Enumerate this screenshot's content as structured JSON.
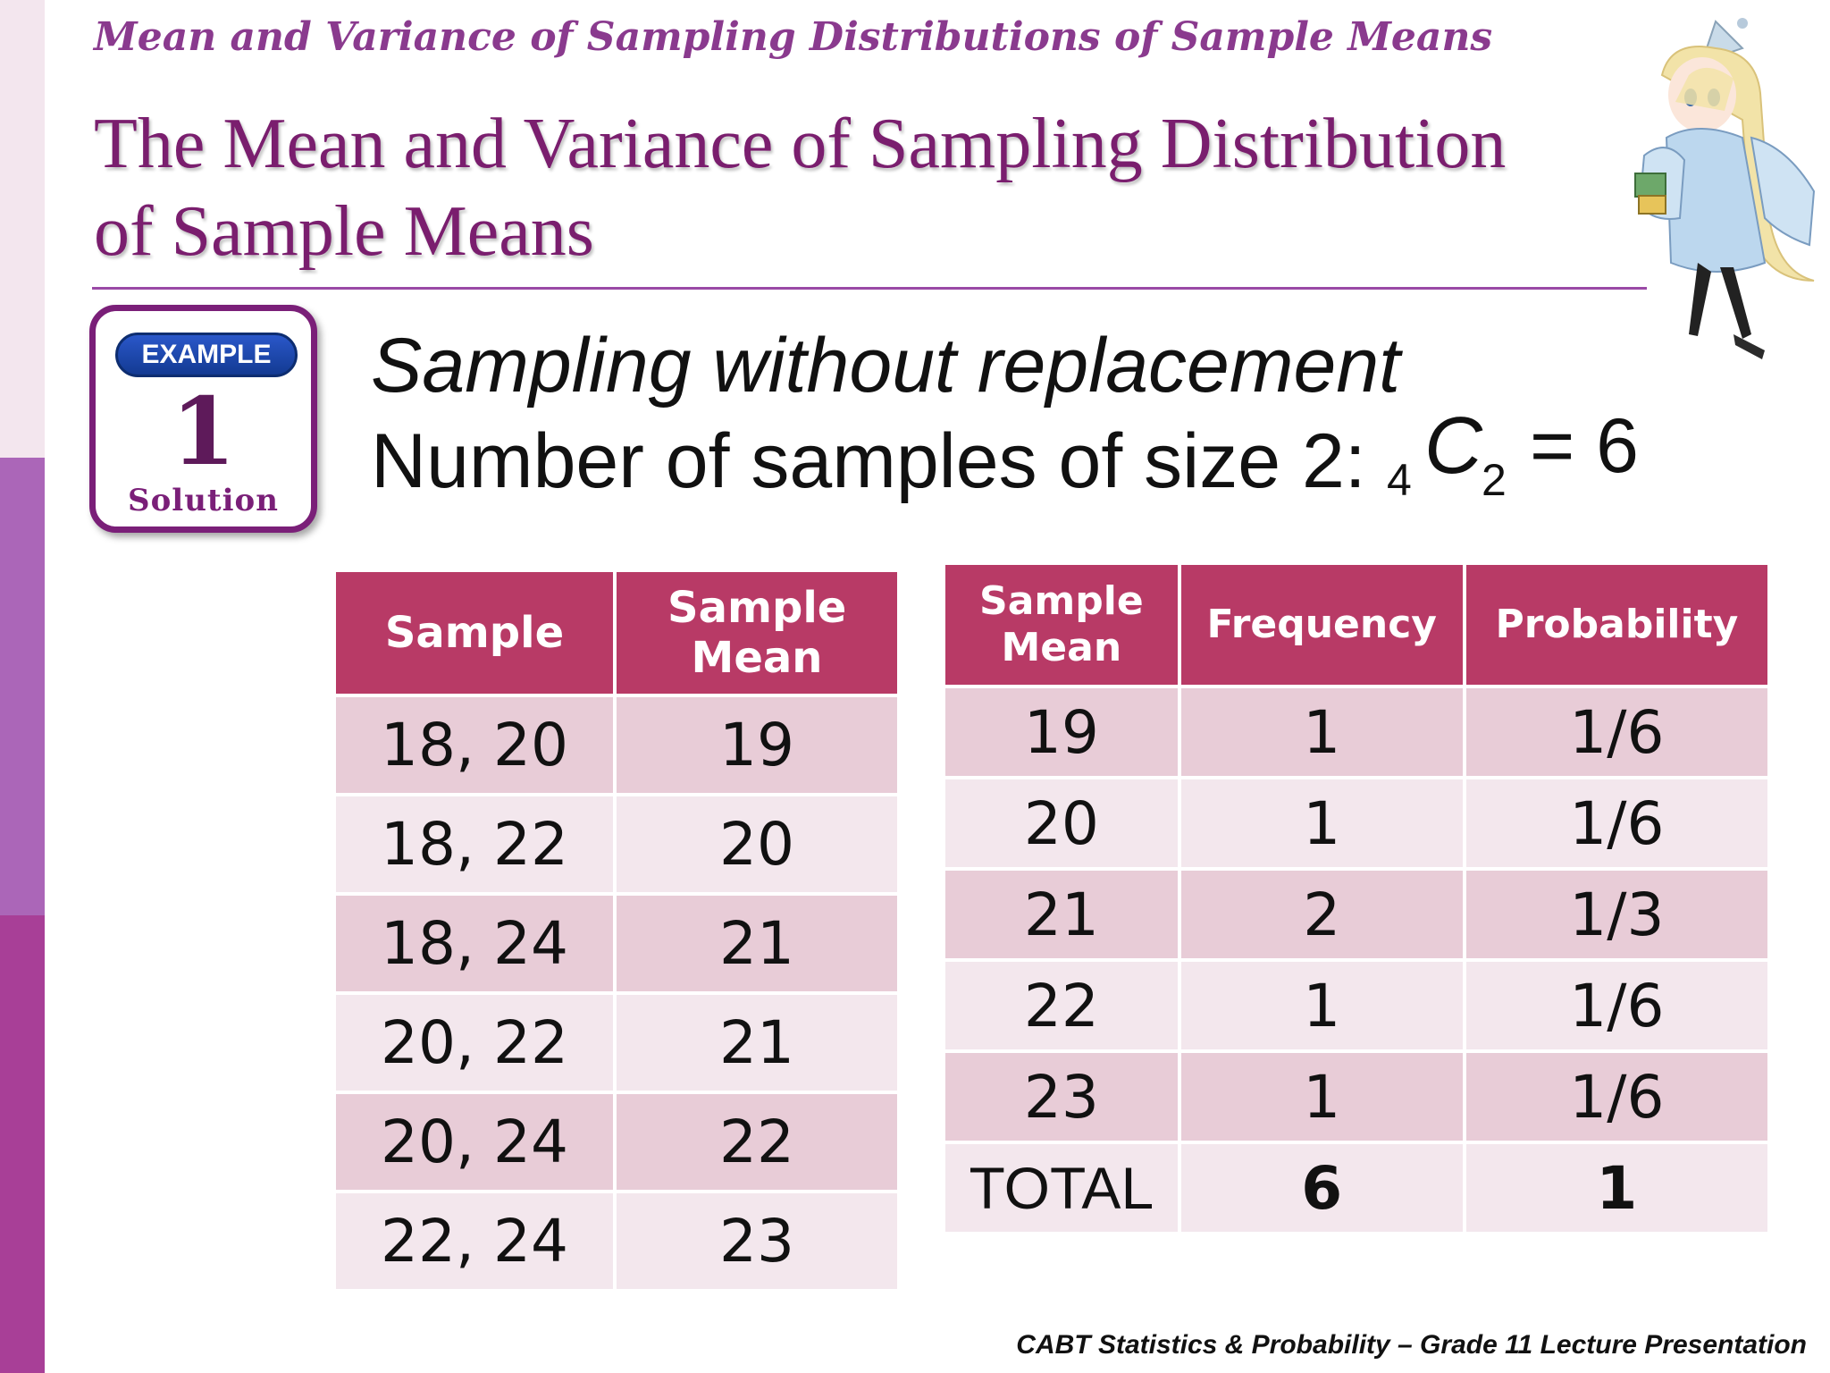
{
  "header": {
    "subtitle": "Mean and Variance of Sampling Distributions of Sample Means",
    "title_line1": "The Mean and Variance of Sampling Distribution",
    "title_line2": "of Sample Means"
  },
  "badge": {
    "label": "EXAMPLE",
    "number": "1",
    "caption": "Solution"
  },
  "intro": {
    "line1": "Sampling without replacement",
    "line2": "Number of samples of size 2:",
    "formula": {
      "pre_subscript": "4",
      "symbol": "C",
      "post_subscript": "2",
      "result": "= 6"
    }
  },
  "samples_table": {
    "headers": [
      "Sample",
      "Sample Mean"
    ],
    "rows": [
      {
        "sample": "18, 20",
        "mean": "19"
      },
      {
        "sample": "18, 22",
        "mean": "20"
      },
      {
        "sample": "18, 24",
        "mean": "21"
      },
      {
        "sample": "20, 22",
        "mean": "21"
      },
      {
        "sample": "20, 24",
        "mean": "22"
      },
      {
        "sample": "22, 24",
        "mean": "23"
      }
    ]
  },
  "distribution_table": {
    "headers": [
      "Sample Mean",
      "Frequency",
      "Probability"
    ],
    "rows": [
      {
        "mean": "19",
        "frequency": "1",
        "probability": "1/6"
      },
      {
        "mean": "20",
        "frequency": "1",
        "probability": "1/6"
      },
      {
        "mean": "21",
        "frequency": "2",
        "probability": "1/3"
      },
      {
        "mean": "22",
        "frequency": "1",
        "probability": "1/6"
      },
      {
        "mean": "23",
        "frequency": "1",
        "probability": "1/6"
      }
    ],
    "total": {
      "label": "TOTAL",
      "frequency": "6",
      "probability": "1"
    }
  },
  "footer": "CABT Statistics & Probability – Grade 11 Lecture Presentation",
  "colors": {
    "accent": "#b83a66",
    "title": "#7a1e6e",
    "row_dark": "#e8ccd7",
    "row_light": "#f3e7ed"
  }
}
